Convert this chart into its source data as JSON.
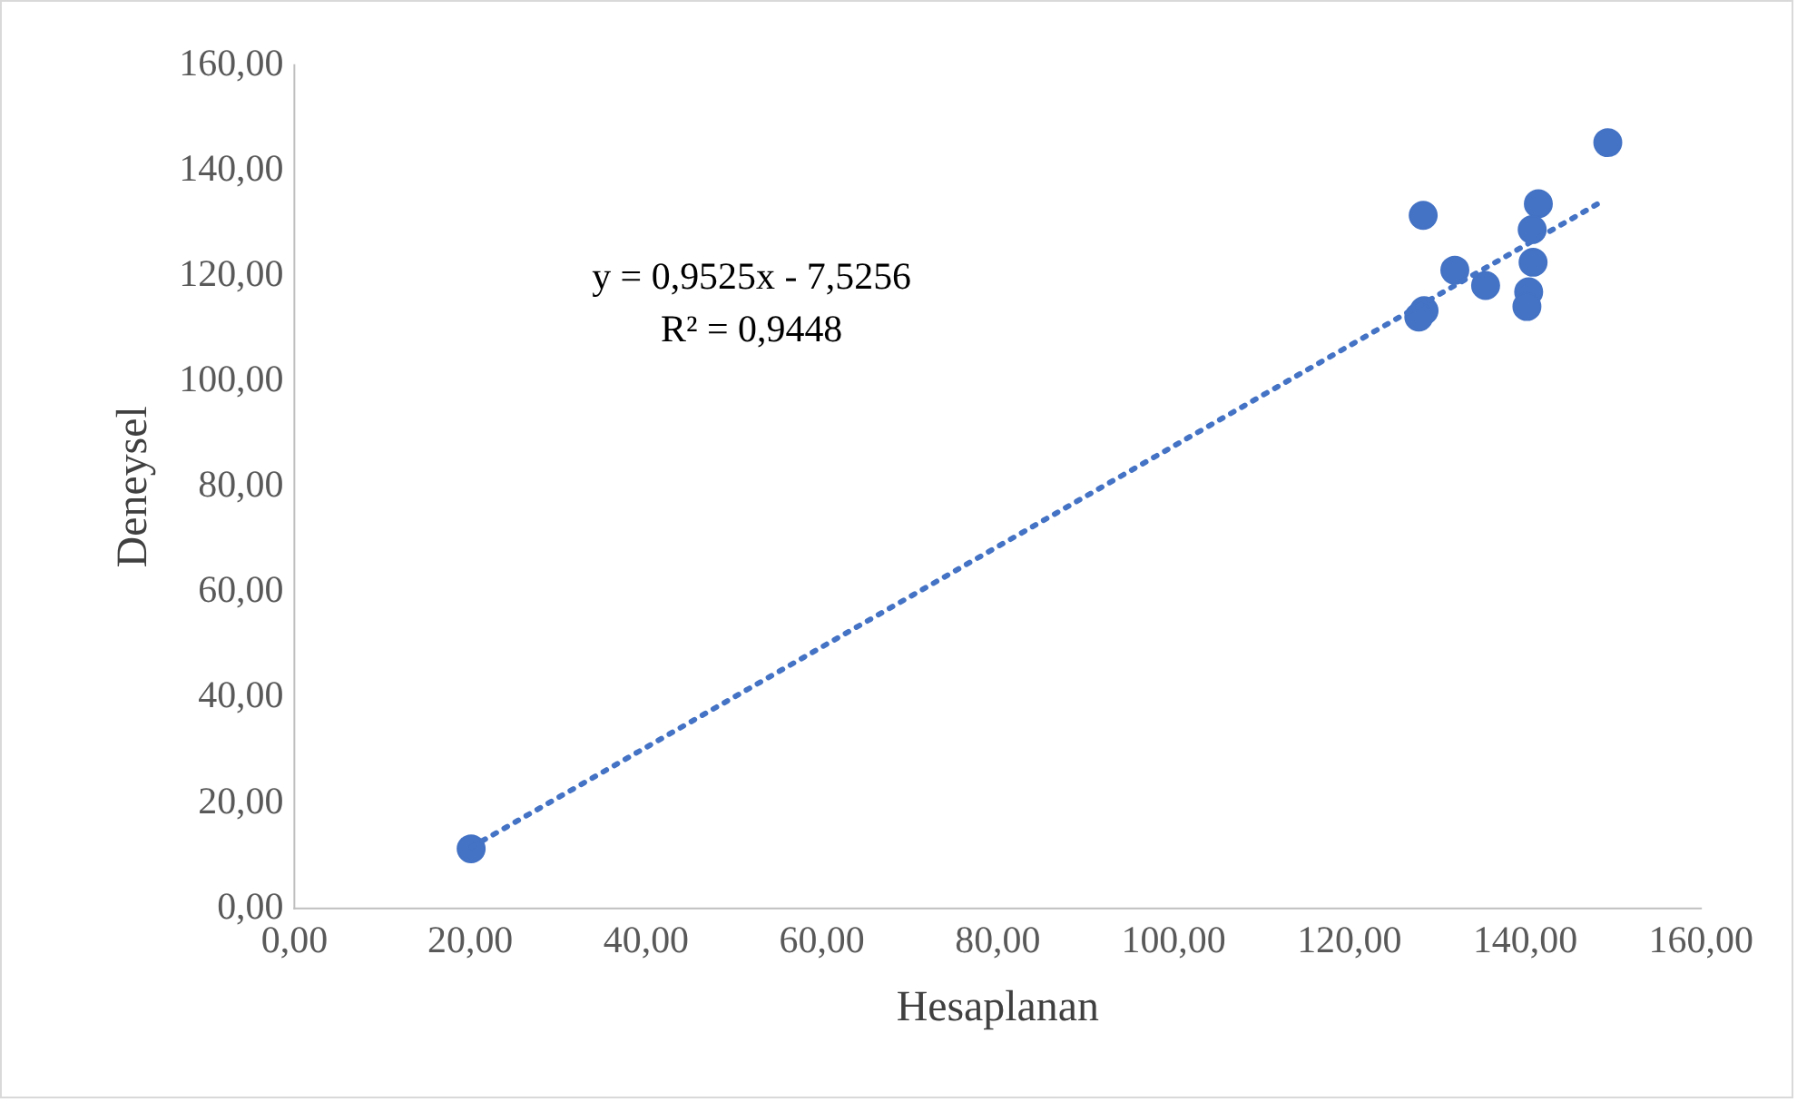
{
  "chart_data": {
    "type": "scatter",
    "xlabel": "Hesaplanan",
    "ylabel": "Deneysel",
    "xlim": [
      0,
      160
    ],
    "ylim": [
      0,
      160
    ],
    "xticks": [
      {
        "value": 0,
        "label": "0,00"
      },
      {
        "value": 20,
        "label": "20,00"
      },
      {
        "value": 40,
        "label": "40,00"
      },
      {
        "value": 60,
        "label": "60,00"
      },
      {
        "value": 80,
        "label": "80,00"
      },
      {
        "value": 100,
        "label": "100,00"
      },
      {
        "value": 120,
        "label": "120,00"
      },
      {
        "value": 140,
        "label": "140,00"
      },
      {
        "value": 160,
        "label": "160,00"
      }
    ],
    "yticks": [
      {
        "value": 0,
        "label": "0,00"
      },
      {
        "value": 20,
        "label": "20,00"
      },
      {
        "value": 40,
        "label": "40,00"
      },
      {
        "value": 60,
        "label": "60,00"
      },
      {
        "value": 80,
        "label": "80,00"
      },
      {
        "value": 100,
        "label": "100,00"
      },
      {
        "value": 120,
        "label": "120,00"
      },
      {
        "value": 140,
        "label": "140,00"
      },
      {
        "value": 160,
        "label": "160,00"
      }
    ],
    "grid": false,
    "legend": false,
    "marker": "circle",
    "series": [
      {
        "color": "#4472c4",
        "x": [
          20.1,
          128.4,
          149.4,
          141.5,
          140.8,
          132.0,
          135.5,
          140.9,
          140.4,
          140.2,
          128.5,
          127.9
        ],
        "values": [
          11.3,
          131.5,
          145.3,
          133.7,
          128.8,
          121.1,
          118.2,
          122.6,
          117.0,
          114.2,
          113.4,
          112.2
        ]
      },
      {
        "type": "line",
        "color": "#4472c4",
        "line_style": "dotted",
        "marker": "none",
        "x": [
          20.1,
          148.7
        ],
        "values": [
          11.6,
          134.1
        ]
      }
    ],
    "annotations": [
      "y = 0,9525x - 7,5256",
      "R² = 0,9448"
    ]
  }
}
